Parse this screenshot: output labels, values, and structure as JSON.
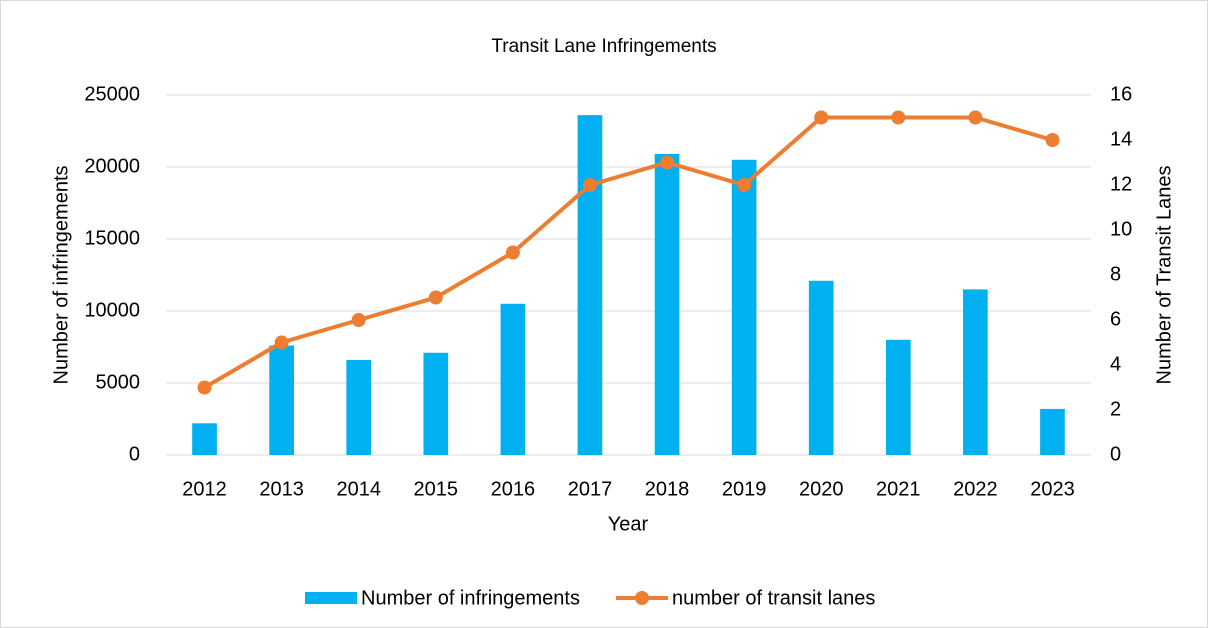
{
  "chart_data": {
    "type": "bar",
    "title": "Transit Lane Infringements",
    "categories": [
      "2012",
      "2013",
      "2014",
      "2015",
      "2016",
      "2017",
      "2018",
      "2019",
      "2020",
      "2021",
      "2022",
      "2023"
    ],
    "x_label": "Year",
    "y_label": "Number of infringements",
    "y2_label": "Number of Transit Lanes",
    "series": [
      {
        "name": "Number of infringements",
        "type": "bar",
        "color": "#00b0f0",
        "values": [
          2200,
          7600,
          6600,
          7100,
          10500,
          23600,
          20900,
          20500,
          12100,
          8000,
          11500,
          3200
        ]
      },
      {
        "name": "number of transit lanes",
        "type": "line",
        "axis": "y2",
        "color": "#ed7d31",
        "values": [
          3,
          5,
          6,
          7,
          9,
          12,
          13,
          12,
          15,
          15,
          15,
          14
        ]
      }
    ],
    "ylim": [
      0,
      25000
    ],
    "yticks": [
      0,
      5000,
      10000,
      15000,
      20000,
      25000
    ],
    "y2lim": [
      0,
      16
    ],
    "y2ticks": [
      0,
      2,
      4,
      6,
      8,
      10,
      12,
      14,
      16
    ],
    "grid": true,
    "legend": "bottom"
  }
}
